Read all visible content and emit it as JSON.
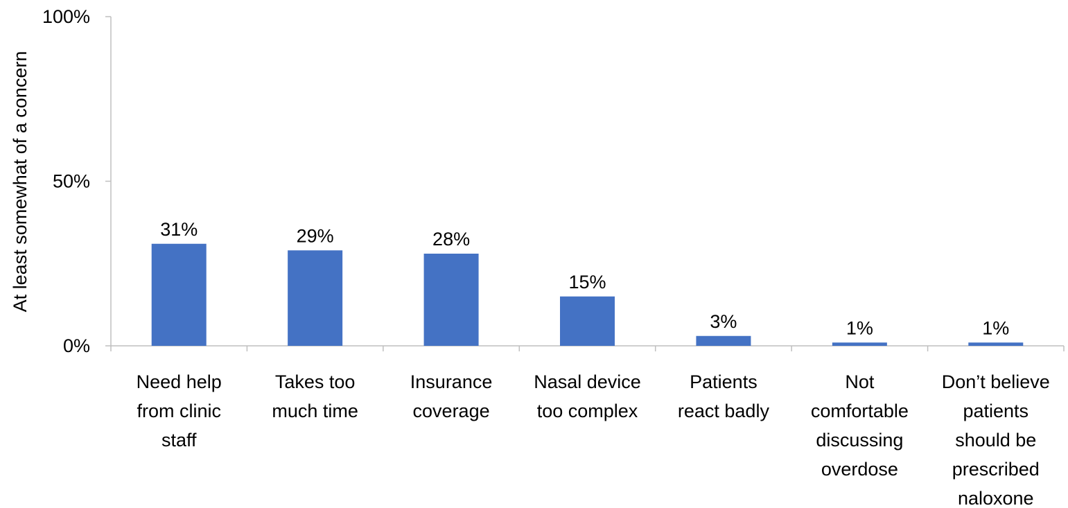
{
  "chart_data": {
    "type": "bar",
    "categories": [
      [
        "Need help",
        "from clinic",
        "staff"
      ],
      [
        "Takes too",
        "much time"
      ],
      [
        "Insurance",
        "coverage"
      ],
      [
        "Nasal device",
        "too complex"
      ],
      [
        "Patients",
        "react badly"
      ],
      [
        "Not",
        "comfortable",
        "discussing",
        "overdose"
      ],
      [
        "Don’t believe",
        "patients",
        "should be",
        "prescribed",
        "naloxone"
      ]
    ],
    "values": [
      31,
      29,
      28,
      15,
      3,
      1,
      1
    ],
    "data_labels": [
      "31%",
      "29%",
      "28%",
      "15%",
      "3%",
      "1%",
      "1%"
    ],
    "ylabel": "At least somewhat of a concern",
    "ylim": [
      0,
      100
    ],
    "y_ticks": [
      0,
      50,
      100
    ],
    "y_tick_labels": [
      "0%",
      "50%",
      "100%"
    ],
    "bar_color": "#4472C4",
    "axis_color": "#BFBFBF",
    "grid": false,
    "legend": "none"
  }
}
